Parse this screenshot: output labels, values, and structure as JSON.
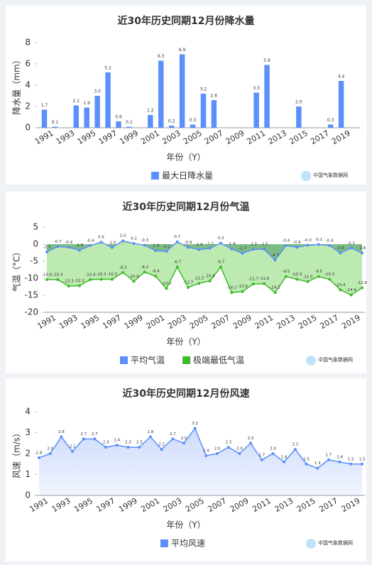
{
  "watermark": "中国气象数据网",
  "chart_data": [
    {
      "type": "bar",
      "title": "近30年历史同期12月份降水量",
      "x_label": "年份（Y）",
      "y_label": "降水量（mm）",
      "categories": [
        "1991",
        null,
        "1993",
        null,
        "1995",
        null,
        "1997",
        null,
        "1999",
        null,
        "2001",
        null,
        "2003",
        null,
        "2005",
        null,
        "2007",
        null,
        "2009",
        null,
        "2011",
        null,
        "2013",
        null,
        "2015",
        null,
        "2017",
        null,
        "2019",
        null
      ],
      "series": [
        {
          "name": "最大日降水量",
          "color": "#5b8ff9",
          "values": [
            1.7,
            0.1,
            0,
            2.1,
            1.9,
            3.0,
            5.2,
            0.6,
            0.1,
            0,
            1.2,
            6.3,
            0.2,
            6.9,
            0.3,
            3.2,
            2.6,
            0,
            0,
            0,
            3.3,
            5.9,
            0,
            0,
            2.0,
            0,
            0,
            0.3,
            4.4,
            0
          ],
          "value_labels": [
            "1.7",
            "0.1",
            null,
            "2.1",
            "1.9",
            "3.0",
            "5.2",
            "0.6",
            "0.1",
            null,
            "1.2",
            "6.3",
            "0.2",
            "6.9",
            "0.3",
            "3.2",
            "2.6",
            null,
            null,
            null,
            "3.3",
            "5.9",
            null,
            null,
            "2.0",
            null,
            null,
            "0.3",
            "4.4",
            null
          ]
        }
      ],
      "ylim": [
        0,
        8
      ],
      "yticks": [
        0,
        2,
        4,
        6,
        8
      ]
    },
    {
      "type": "line",
      "title": "近30年历史同期12月份气温",
      "x_label": "年份（Y）",
      "y_label": "气温（°C）",
      "categories": [
        "1991",
        null,
        "1993",
        null,
        "1995",
        null,
        "1997",
        null,
        "1999",
        null,
        "2001",
        null,
        "2003",
        null,
        "2005",
        null,
        "2007",
        null,
        "2009",
        null,
        "2011",
        null,
        "2013",
        null,
        "2015",
        null,
        "2017",
        null,
        "2019",
        null
      ],
      "series": [
        {
          "name": "平均气温",
          "color": "#5b8ff9",
          "fill_color": "#6fb57a",
          "values": [
            -2.3,
            -0.7,
            -0.9,
            -1.8,
            -0.4,
            0.6,
            -1.0,
            1.0,
            0.2,
            -0.3,
            -1.9,
            -2.1,
            0.7,
            -0.9,
            -1.6,
            -1.2,
            0.3,
            -1.4,
            -2.7,
            -1.5,
            -1.5,
            -4.7,
            -0.4,
            -0.9,
            -0.3,
            -0.1,
            -0.4,
            -2.6,
            -1.1,
            -2.6
          ],
          "value_labels": [
            "-2.3",
            "-0.7",
            "-0.9",
            "-1.8",
            "-0.4",
            "0.6",
            "-1.0",
            "1.0",
            "0.2",
            "-0.3",
            "-1.9",
            "-2.1",
            "0.7",
            "-0.9",
            "-1.6",
            "-1.2",
            "0.3",
            "-1.4",
            "-2.7",
            "-1.5",
            "-1.5",
            "-4.7",
            "-0.4",
            "-0.9",
            "-0.3",
            "-0.1",
            "-0.4",
            "-2.6",
            "-1.1",
            "-2.6"
          ]
        },
        {
          "name": "极端最低气温",
          "color": "#3dbb2a",
          "fill_color": "#b5e8a8",
          "values": [
            -10.4,
            -10.4,
            -12.3,
            -12.2,
            -10.4,
            -10.3,
            -10.3,
            -8.3,
            -10.9,
            -8.2,
            -9.4,
            -13.0,
            -6.7,
            -12.7,
            -11.5,
            -10.8,
            -6.7,
            -14.2,
            -13.9,
            -11.7,
            -11.6,
            -14.2,
            -9.5,
            -10.3,
            -11.0,
            -9.5,
            -10.3,
            -13.4,
            -14.9,
            -12.8
          ],
          "value_labels": [
            "-10.4",
            "-10.4",
            "-12.3",
            "-12.2",
            "-10.4",
            "-10.3",
            "-10.3",
            "-8.3",
            "-10.9",
            "-8.2",
            "-9.4",
            "-13.0",
            "-6.7",
            "-12.7",
            "-11.5",
            "-10.8",
            "-6.7",
            "-14.2",
            "-13.9",
            "-11.7",
            "-11.6",
            "-14.2",
            "-9.5",
            "-10.3",
            "-11.0",
            "-9.5",
            "-10.3",
            "-13.4",
            "-14.9",
            "-12.8"
          ]
        }
      ],
      "ylim": [
        -20,
        5
      ],
      "yticks": [
        5,
        0,
        -5,
        -10,
        -15,
        -20
      ]
    },
    {
      "type": "line",
      "title": "近30年历史同期12月份风速",
      "x_label": "年份（Y）",
      "y_label": "风速（m/s）",
      "categories": [
        "1991",
        null,
        "1993",
        null,
        "1995",
        null,
        "1997",
        null,
        "1999",
        null,
        "2001",
        null,
        "2003",
        null,
        "2005",
        null,
        "2007",
        null,
        "2009",
        null,
        "2011",
        null,
        "2013",
        null,
        "2015",
        null,
        "2017",
        null,
        "2019",
        null
      ],
      "series": [
        {
          "name": "平均风速",
          "color": "#5b8ff9",
          "fill_color": "#c9d7fb",
          "values": [
            1.8,
            2.0,
            2.8,
            2.1,
            2.7,
            2.7,
            2.3,
            2.4,
            2.3,
            2.3,
            2.8,
            2.2,
            2.7,
            2.5,
            3.2,
            1.9,
            2.0,
            2.3,
            2.0,
            2.5,
            1.7,
            2.0,
            1.6,
            2.2,
            1.5,
            1.3,
            1.7,
            1.6,
            1.5,
            1.5
          ],
          "value_labels": [
            "1.8",
            "2.0",
            "2.8",
            "2.1",
            "2.7",
            "2.7",
            "2.3",
            "2.4",
            "2.3",
            "2.3",
            "2.8",
            "2.2",
            "2.7",
            "2.5",
            "3.2",
            "1.9",
            "2.0",
            "2.3",
            "2.0",
            "2.5",
            "1.7",
            "2.0",
            "1.6",
            "2.2",
            "1.5",
            "1.3",
            "1.7",
            "1.6",
            "1.5",
            "1.5"
          ]
        }
      ],
      "ylim": [
        0,
        4
      ],
      "yticks": [
        0,
        1,
        2,
        3,
        4
      ]
    }
  ]
}
